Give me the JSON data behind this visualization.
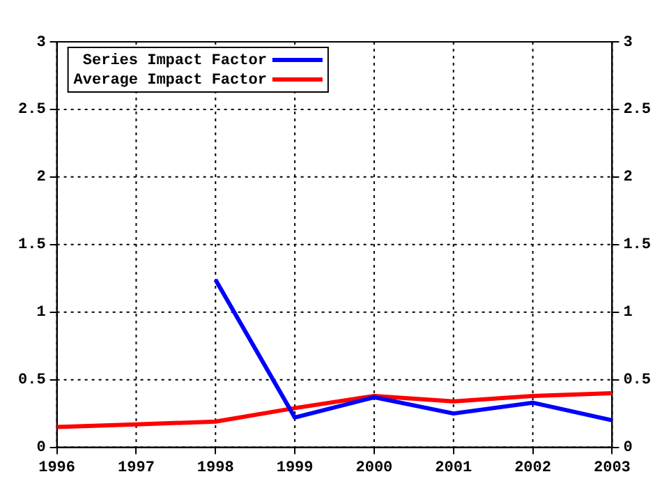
{
  "chart_data": {
    "type": "line",
    "categories": [
      "1996",
      "1997",
      "1998",
      "1999",
      "2000",
      "2001",
      "2002",
      "2003"
    ],
    "series": [
      {
        "name": "Series Impact Factor",
        "color": "#0000ff",
        "values": [
          null,
          null,
          1.24,
          0.22,
          0.37,
          0.25,
          0.33,
          0.2
        ]
      },
      {
        "name": "Average Impact Factor",
        "color": "#ff0000",
        "values": [
          0.15,
          0.17,
          0.19,
          0.29,
          0.38,
          0.34,
          0.38,
          0.4
        ]
      }
    ],
    "ylim": [
      0,
      3
    ],
    "yticks": [
      0,
      0.5,
      1,
      1.5,
      2,
      2.5,
      3
    ],
    "y2lim": [
      0,
      3
    ],
    "y2ticks": [
      0,
      0.5,
      1,
      1.5,
      2,
      2.5,
      3
    ],
    "grid": true,
    "legend": "top left",
    "marker": "none",
    "line_style": "solid"
  }
}
